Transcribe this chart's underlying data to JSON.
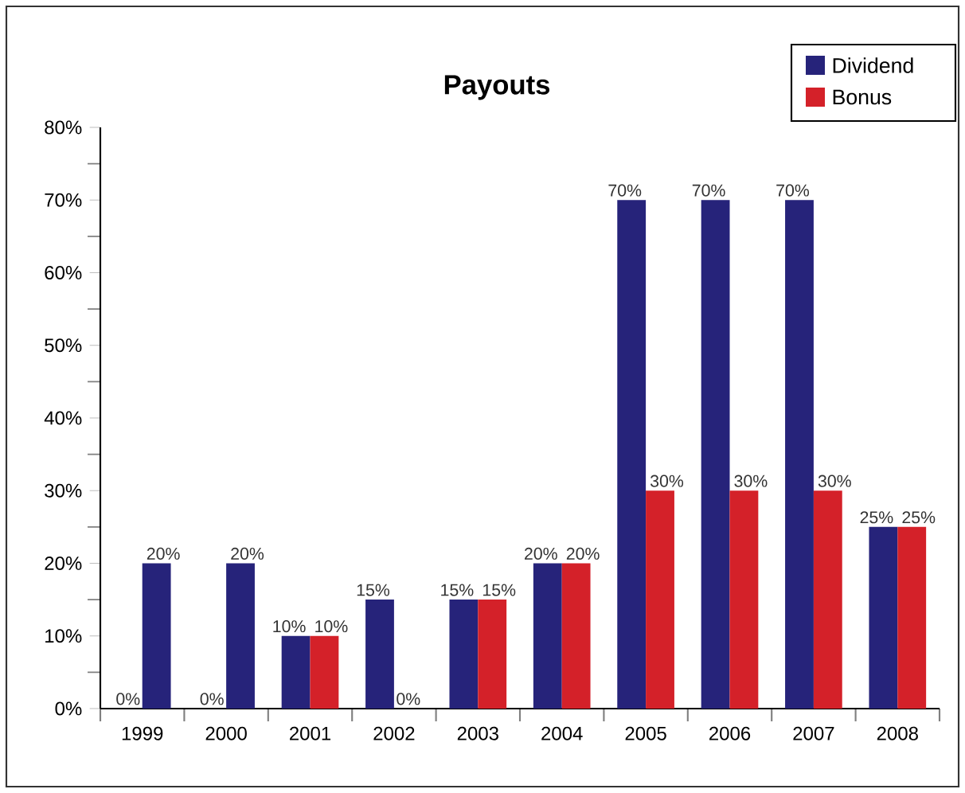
{
  "chart_data": {
    "type": "bar",
    "title": "Payouts",
    "categories": [
      "1999",
      "2000",
      "2001",
      "2002",
      "2003",
      "2004",
      "2005",
      "2006",
      "2007",
      "2008"
    ],
    "series": [
      {
        "name": "Dividend",
        "color": "#26237a",
        "values": [
          0,
          0,
          10,
          15,
          15,
          20,
          70,
          70,
          70,
          25
        ],
        "value_labels": [
          "0%",
          "0%",
          "10%",
          "15%",
          "15%",
          "20%",
          "70%",
          "70%",
          "70%",
          "25%"
        ]
      },
      {
        "name": "Bonus",
        "color": "#d42129",
        "colors": [
          "#26237a",
          "#26237a",
          "#d42129",
          "#d42129",
          "#d42129",
          "#d42129",
          "#d42129",
          "#d42129",
          "#d42129",
          "#d42129"
        ],
        "values": [
          20,
          20,
          10,
          0,
          15,
          20,
          30,
          30,
          30,
          25
        ],
        "value_labels": [
          "20%",
          "20%",
          "10%",
          "0%",
          "15%",
          "20%",
          "30%",
          "30%",
          "30%",
          "25%"
        ]
      }
    ],
    "ylim": [
      0,
      80
    ],
    "yticks": [
      {
        "value": 0,
        "label": "0%"
      },
      {
        "value": 5,
        "label": null
      },
      {
        "value": 10,
        "label": "10%"
      },
      {
        "value": 15,
        "label": null
      },
      {
        "value": 20,
        "label": "20%"
      },
      {
        "value": 25,
        "label": null
      },
      {
        "value": 30,
        "label": "30%"
      },
      {
        "value": 35,
        "label": null
      },
      {
        "value": 40,
        "label": "40%"
      },
      {
        "value": 45,
        "label": null
      },
      {
        "value": 50,
        "label": "50%"
      },
      {
        "value": 55,
        "label": null
      },
      {
        "value": 60,
        "label": "60%"
      },
      {
        "value": 65,
        "label": null
      },
      {
        "value": 70,
        "label": "70%"
      },
      {
        "value": 75,
        "label": null
      },
      {
        "value": 80,
        "label": "80%"
      }
    ],
    "grid": false,
    "legend": "top right"
  }
}
